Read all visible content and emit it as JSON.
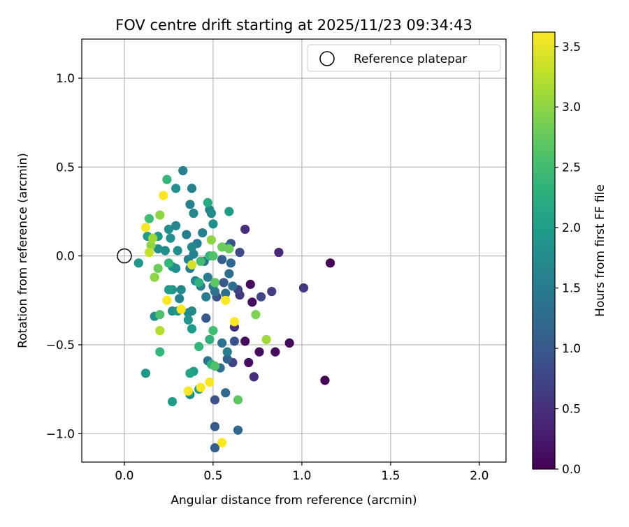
{
  "chart_data": {
    "type": "scatter",
    "title": "FOV centre drift starting at 2025/11/23 09:34:43",
    "xlabel": "Angular distance from reference (arcmin)",
    "ylabel": "Rotation from reference (arcmin)",
    "xlim": [
      -0.24,
      2.15
    ],
    "ylim": [
      -1.16,
      1.22
    ],
    "grid": true,
    "x_ticks": [
      0.0,
      0.5,
      1.0,
      1.5,
      2.0
    ],
    "x_tick_labels": [
      "0.0",
      "0.5",
      "1.0",
      "1.5",
      "2.0"
    ],
    "y_ticks": [
      -1.0,
      -0.5,
      0.0,
      0.5,
      1.0
    ],
    "y_tick_labels": [
      "−1.0",
      "−0.5",
      "0.0",
      "0.5",
      "1.0"
    ],
    "legend": {
      "placement": "upper right",
      "entries": [
        {
          "label": "Reference platepar",
          "marker": "open-circle"
        }
      ]
    },
    "reference_point": {
      "x": 0.0,
      "y": 0.0,
      "label": "Reference platepar"
    },
    "colorbar": {
      "label": "Hours from first FF file",
      "colormap": "viridis",
      "range": [
        0.0,
        3.62
      ],
      "ticks": [
        0.0,
        0.5,
        1.0,
        1.5,
        2.0,
        2.5,
        3.0,
        3.5
      ],
      "tick_labels": [
        "0.0",
        "0.5",
        "1.0",
        "1.5",
        "2.0",
        "2.5",
        "3.0",
        "3.5"
      ]
    },
    "series": [
      {
        "name": "FOV centre drift",
        "points": [
          {
            "x": 1.16,
            "y": -0.04,
            "c": 0.0
          },
          {
            "x": 1.13,
            "y": -0.7,
            "c": 0.0
          },
          {
            "x": 0.93,
            "y": -0.49,
            "c": 0.1
          },
          {
            "x": 0.85,
            "y": -0.54,
            "c": 0.1
          },
          {
            "x": 0.76,
            "y": -0.54,
            "c": 0.1
          },
          {
            "x": 0.72,
            "y": -0.26,
            "c": 0.15
          },
          {
            "x": 0.71,
            "y": -0.16,
            "c": 0.1
          },
          {
            "x": 0.7,
            "y": -0.6,
            "c": 0.15
          },
          {
            "x": 0.68,
            "y": -0.48,
            "c": 0.1
          },
          {
            "x": 0.87,
            "y": 0.02,
            "c": 0.4
          },
          {
            "x": 0.68,
            "y": 0.15,
            "c": 0.5
          },
          {
            "x": 1.01,
            "y": -0.18,
            "c": 0.6
          },
          {
            "x": 0.83,
            "y": -0.2,
            "c": 0.65
          },
          {
            "x": 0.77,
            "y": -0.23,
            "c": 0.75
          },
          {
            "x": 0.73,
            "y": -0.68,
            "c": 0.5
          },
          {
            "x": 0.65,
            "y": -0.22,
            "c": 0.6
          },
          {
            "x": 0.62,
            "y": -0.4,
            "c": 0.5
          },
          {
            "x": 0.64,
            "y": -0.19,
            "c": 0.7
          },
          {
            "x": 0.61,
            "y": -0.6,
            "c": 0.7
          },
          {
            "x": 0.62,
            "y": -0.48,
            "c": 0.9
          },
          {
            "x": 0.65,
            "y": 0.02,
            "c": 0.8
          },
          {
            "x": 0.6,
            "y": 0.07,
            "c": 0.9
          },
          {
            "x": 0.56,
            "y": -0.15,
            "c": 1.0
          },
          {
            "x": 0.52,
            "y": -0.23,
            "c": 0.9
          },
          {
            "x": 0.46,
            "y": -0.35,
            "c": 1.0
          },
          {
            "x": 0.51,
            "y": -0.81,
            "c": 0.9
          },
          {
            "x": 0.51,
            "y": -0.96,
            "c": 1.0
          },
          {
            "x": 0.51,
            "y": -1.08,
            "c": 1.1
          },
          {
            "x": 0.64,
            "y": -0.98,
            "c": 1.2
          },
          {
            "x": 0.57,
            "y": -0.77,
            "c": 1.2
          },
          {
            "x": 0.58,
            "y": -0.58,
            "c": 1.1
          },
          {
            "x": 0.55,
            "y": -0.02,
            "c": 1.1
          },
          {
            "x": 0.6,
            "y": -0.04,
            "c": 1.2
          },
          {
            "x": 0.59,
            "y": -0.1,
            "c": 1.3
          },
          {
            "x": 0.57,
            "y": -0.21,
            "c": 1.3
          },
          {
            "x": 0.61,
            "y": -0.17,
            "c": 1.3
          },
          {
            "x": 0.58,
            "y": 0.05,
            "c": 1.4
          },
          {
            "x": 0.54,
            "y": -0.63,
            "c": 1.3
          },
          {
            "x": 0.55,
            "y": -0.49,
            "c": 1.4
          },
          {
            "x": 0.58,
            "y": -0.54,
            "c": 1.5
          },
          {
            "x": 0.47,
            "y": -0.59,
            "c": 1.4
          },
          {
            "x": 0.51,
            "y": -0.2,
            "c": 1.4
          },
          {
            "x": 0.5,
            "y": -0.17,
            "c": 1.5
          },
          {
            "x": 0.47,
            "y": -0.12,
            "c": 1.5
          },
          {
            "x": 0.46,
            "y": -0.23,
            "c": 1.5
          },
          {
            "x": 0.45,
            "y": -0.03,
            "c": 1.4
          },
          {
            "x": 0.43,
            "y": -0.17,
            "c": 1.6
          },
          {
            "x": 0.41,
            "y": 0.07,
            "c": 1.5
          },
          {
            "x": 0.44,
            "y": 0.13,
            "c": 1.6
          },
          {
            "x": 0.4,
            "y": -0.14,
            "c": 1.7
          },
          {
            "x": 0.39,
            "y": 0.01,
            "c": 1.6
          },
          {
            "x": 0.37,
            "y": -0.07,
            "c": 1.5
          },
          {
            "x": 0.36,
            "y": -0.02,
            "c": 1.6
          },
          {
            "x": 0.38,
            "y": 0.05,
            "c": 1.7
          },
          {
            "x": 0.35,
            "y": 0.12,
            "c": 1.6
          },
          {
            "x": 0.32,
            "y": -0.19,
            "c": 1.7
          },
          {
            "x": 0.31,
            "y": -0.24,
            "c": 1.6
          },
          {
            "x": 0.33,
            "y": 0.48,
            "c": 1.6
          },
          {
            "x": 0.38,
            "y": 0.38,
            "c": 1.6
          },
          {
            "x": 0.37,
            "y": 0.29,
            "c": 1.6
          },
          {
            "x": 0.39,
            "y": 0.24,
            "c": 1.7
          },
          {
            "x": 0.48,
            "y": 0.26,
            "c": 1.6
          },
          {
            "x": 0.49,
            "y": 0.24,
            "c": 1.7
          },
          {
            "x": 0.5,
            "y": 0.18,
            "c": 1.8
          },
          {
            "x": 0.59,
            "y": 0.25,
            "c": 2.0
          },
          {
            "x": 0.47,
            "y": 0.3,
            "c": 2.2
          },
          {
            "x": 0.29,
            "y": 0.38,
            "c": 1.8
          },
          {
            "x": 0.25,
            "y": 0.15,
            "c": 1.8
          },
          {
            "x": 0.29,
            "y": 0.17,
            "c": 1.7
          },
          {
            "x": 0.26,
            "y": 0.1,
            "c": 1.8
          },
          {
            "x": 0.23,
            "y": 0.03,
            "c": 1.8
          },
          {
            "x": 0.27,
            "y": -0.06,
            "c": 1.9
          },
          {
            "x": 0.29,
            "y": -0.07,
            "c": 1.8
          },
          {
            "x": 0.27,
            "y": -0.19,
            "c": 1.9
          },
          {
            "x": 0.25,
            "y": -0.19,
            "c": 2.0
          },
          {
            "x": 0.3,
            "y": 0.03,
            "c": 1.8
          },
          {
            "x": 0.19,
            "y": 0.11,
            "c": 1.9
          },
          {
            "x": 0.19,
            "y": 0.04,
            "c": 1.8
          },
          {
            "x": 0.13,
            "y": 0.11,
            "c": 2.0
          },
          {
            "x": 0.08,
            "y": -0.04,
            "c": 1.9
          },
          {
            "x": 0.12,
            "y": -0.66,
            "c": 1.9
          },
          {
            "x": 0.17,
            "y": -0.34,
            "c": 1.8
          },
          {
            "x": 0.27,
            "y": -0.31,
            "c": 1.8
          },
          {
            "x": 0.3,
            "y": -0.31,
            "c": 1.9
          },
          {
            "x": 0.36,
            "y": -0.32,
            "c": 1.8
          },
          {
            "x": 0.38,
            "y": -0.31,
            "c": 1.7
          },
          {
            "x": 0.36,
            "y": -0.36,
            "c": 1.9
          },
          {
            "x": 0.38,
            "y": -0.41,
            "c": 2.0
          },
          {
            "x": 0.37,
            "y": -0.78,
            "c": 1.8
          },
          {
            "x": 0.42,
            "y": -0.75,
            "c": 2.0
          },
          {
            "x": 0.27,
            "y": -0.82,
            "c": 2.0
          },
          {
            "x": 0.39,
            "y": -0.65,
            "c": 2.0
          },
          {
            "x": 0.37,
            "y": -0.66,
            "c": 2.1
          },
          {
            "x": 0.49,
            "y": -0.61,
            "c": 2.3
          },
          {
            "x": 0.42,
            "y": -0.51,
            "c": 2.4
          },
          {
            "x": 0.48,
            "y": -0.47,
            "c": 2.3
          },
          {
            "x": 0.5,
            "y": -0.42,
            "c": 2.5
          },
          {
            "x": 0.51,
            "y": -0.62,
            "c": 2.6
          },
          {
            "x": 0.2,
            "y": -0.54,
            "c": 2.4
          },
          {
            "x": 0.24,
            "y": 0.43,
            "c": 2.4
          },
          {
            "x": 0.14,
            "y": 0.21,
            "c": 2.5
          },
          {
            "x": 0.25,
            "y": -0.04,
            "c": 2.4
          },
          {
            "x": 0.2,
            "y": -0.33,
            "c": 2.6
          },
          {
            "x": 0.42,
            "y": -0.15,
            "c": 2.3
          },
          {
            "x": 0.43,
            "y": -0.03,
            "c": 2.5
          },
          {
            "x": 0.48,
            "y": 0.0,
            "c": 2.4
          },
          {
            "x": 0.5,
            "y": 0.0,
            "c": 2.6
          },
          {
            "x": 0.51,
            "y": -0.15,
            "c": 2.7
          },
          {
            "x": 0.55,
            "y": 0.05,
            "c": 2.8
          },
          {
            "x": 0.59,
            "y": 0.04,
            "c": 2.8
          },
          {
            "x": 0.49,
            "y": 0.09,
            "c": 3.0
          },
          {
            "x": 0.64,
            "y": -0.81,
            "c": 2.7
          },
          {
            "x": 0.74,
            "y": -0.33,
            "c": 2.9
          },
          {
            "x": 0.8,
            "y": -0.47,
            "c": 3.1
          },
          {
            "x": 0.19,
            "y": -0.07,
            "c": 2.8
          },
          {
            "x": 0.17,
            "y": -0.12,
            "c": 3.0
          },
          {
            "x": 0.2,
            "y": 0.23,
            "c": 3.0
          },
          {
            "x": 0.15,
            "y": 0.06,
            "c": 3.0
          },
          {
            "x": 0.16,
            "y": 0.1,
            "c": 3.1
          },
          {
            "x": 0.2,
            "y": -0.42,
            "c": 3.2
          },
          {
            "x": 0.14,
            "y": 0.02,
            "c": 3.3
          },
          {
            "x": 0.38,
            "y": -0.05,
            "c": 3.4
          },
          {
            "x": 0.12,
            "y": 0.16,
            "c": 3.6
          },
          {
            "x": 0.22,
            "y": 0.34,
            "c": 3.6
          },
          {
            "x": 0.24,
            "y": -0.25,
            "c": 3.6
          },
          {
            "x": 0.32,
            "y": -0.3,
            "c": 3.6
          },
          {
            "x": 0.36,
            "y": -0.76,
            "c": 3.6
          },
          {
            "x": 0.43,
            "y": -0.74,
            "c": 3.6
          },
          {
            "x": 0.48,
            "y": -0.71,
            "c": 3.6
          },
          {
            "x": 0.55,
            "y": -1.05,
            "c": 3.6
          },
          {
            "x": 0.57,
            "y": -0.25,
            "c": 3.6
          },
          {
            "x": 0.62,
            "y": -0.37,
            "c": 3.6
          }
        ]
      }
    ]
  }
}
